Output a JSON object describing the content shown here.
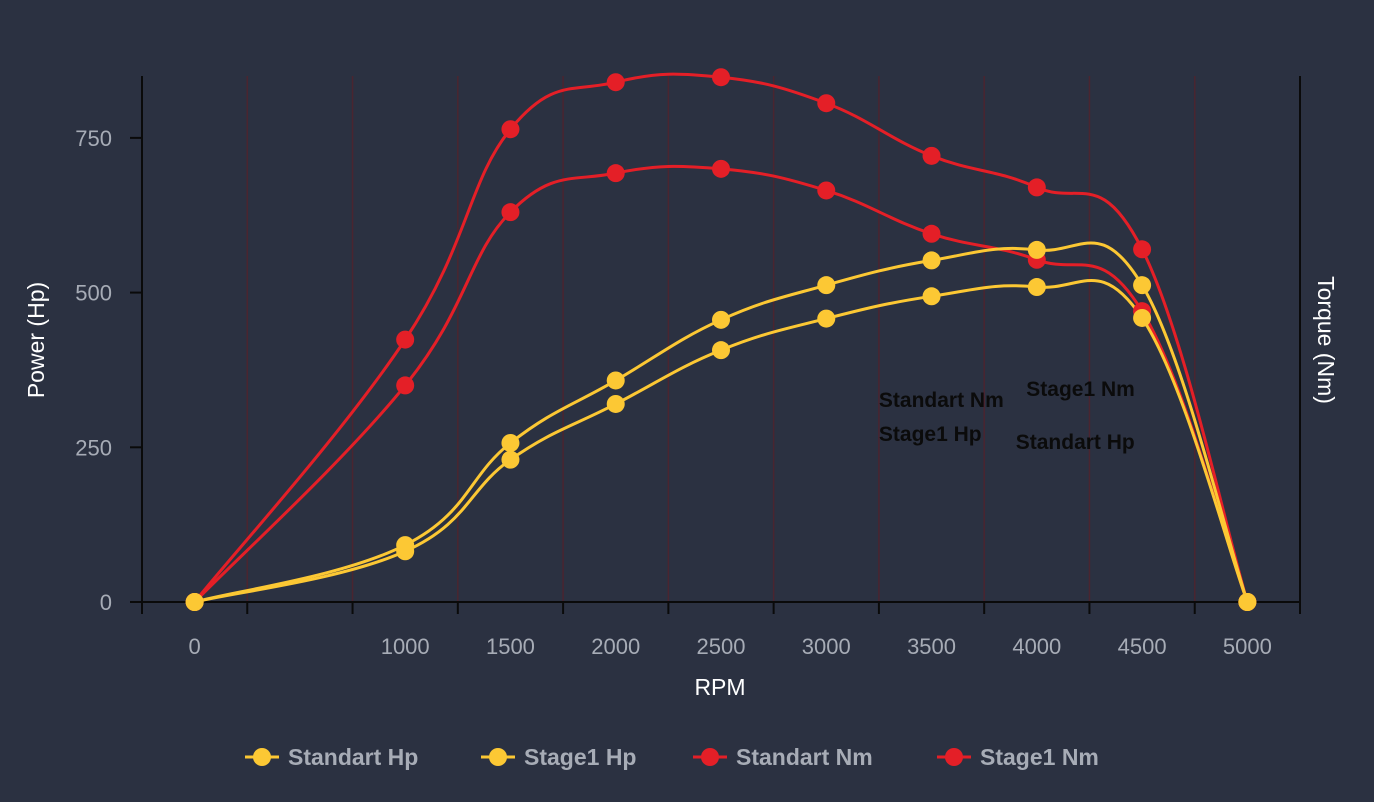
{
  "chart_data": {
    "type": "line",
    "xlabel": "RPM",
    "ylabel": "Power (Hp)",
    "y2label": "Torque (Nm)",
    "x": [
      0,
      1000,
      1500,
      2000,
      2500,
      3000,
      3500,
      4000,
      4500,
      5000
    ],
    "xlim": [
      -250,
      5250
    ],
    "ylim": [
      -20,
      850
    ],
    "yticks": [
      0,
      250,
      500,
      750
    ],
    "grid": "vertical",
    "legend": "bottom",
    "colors": {
      "hp": "#fcc834",
      "nm": "#e41f27",
      "background": "#2b3141",
      "axis": "#0a0a0a",
      "grid": "#4a2530"
    },
    "series": [
      {
        "name": "Standart Hp",
        "axis": "left",
        "color": "#fcc834",
        "values": [
          0,
          82,
          230,
          320,
          407,
          458,
          494,
          509,
          459,
          0
        ]
      },
      {
        "name": "Stage1 Hp",
        "axis": "left",
        "color": "#fcc834",
        "values": [
          0,
          92,
          257,
          358,
          456,
          512,
          552,
          569,
          512,
          0
        ]
      },
      {
        "name": "Standart Nm",
        "axis": "right",
        "color": "#e41f27",
        "values": [
          0,
          350,
          630,
          693,
          700,
          665,
          595,
          553,
          470,
          0
        ]
      },
      {
        "name": "Stage1 Nm",
        "axis": "right",
        "color": "#e41f27",
        "values": [
          0,
          424,
          764,
          840,
          848,
          806,
          721,
          670,
          570,
          0
        ]
      }
    ],
    "annotations": [
      {
        "text": "Standart Nm",
        "x": 3250,
        "y": 315
      },
      {
        "text": "Stage1 Nm",
        "x": 3950,
        "y": 333
      },
      {
        "text": "Stage1 Hp",
        "x": 3250,
        "y": 260
      },
      {
        "text": "Standart Hp",
        "x": 3900,
        "y": 247
      }
    ]
  }
}
